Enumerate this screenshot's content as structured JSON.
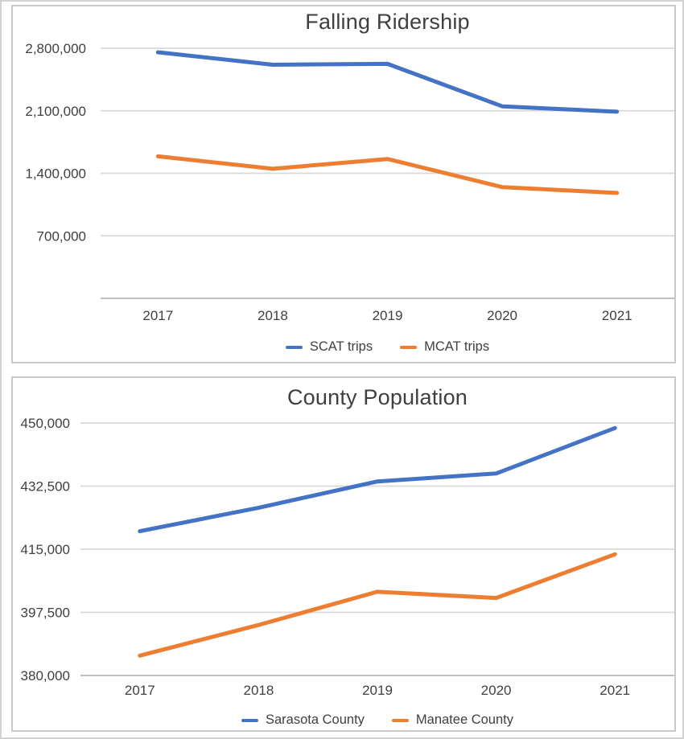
{
  "colors": {
    "series_blue": "#4472C4",
    "series_orange": "#ED7D31",
    "gridline": "#D9D9D9",
    "axis_line": "#BFBFBF",
    "label_text": "#404040",
    "title_text": "#3F3F3F",
    "panel_border": "#C9C9C9"
  },
  "chart_data": [
    {
      "type": "line",
      "title": "Falling Ridership",
      "xlabel": "",
      "ylabel": "",
      "grid": true,
      "legend_position": "bottom",
      "categories": [
        "2017",
        "2018",
        "2019",
        "2020",
        "2021"
      ],
      "series": [
        {
          "name": "SCAT trips",
          "color": "#4472C4",
          "values": [
            2755000,
            2615000,
            2625000,
            2150000,
            2090000
          ]
        },
        {
          "name": "MCAT trips",
          "color": "#ED7D31",
          "values": [
            1590000,
            1450000,
            1560000,
            1245000,
            1180000
          ]
        }
      ],
      "ylim": [
        0,
        2800000
      ],
      "yticks": [
        {
          "value": 2800000,
          "label": "2,800,000"
        },
        {
          "value": 2100000,
          "label": "2,100,000"
        },
        {
          "value": 1400000,
          "label": "1,400,000"
        },
        {
          "value": 700000,
          "label": "700,000"
        },
        {
          "value": 0,
          "label": ""
        }
      ]
    },
    {
      "type": "line",
      "title": "County Population",
      "xlabel": "",
      "ylabel": "",
      "grid": true,
      "legend_position": "bottom",
      "categories": [
        "2017",
        "2018",
        "2019",
        "2020",
        "2021"
      ],
      "series": [
        {
          "name": "Sarasota County",
          "color": "#4472C4",
          "values": [
            420000,
            426500,
            433800,
            436000,
            448600
          ]
        },
        {
          "name": "Manatee County",
          "color": "#ED7D31",
          "values": [
            385500,
            394000,
            403200,
            401500,
            413600
          ]
        }
      ],
      "ylim": [
        380000,
        450000
      ],
      "yticks": [
        {
          "value": 450000,
          "label": "450,000"
        },
        {
          "value": 432500,
          "label": "432,500"
        },
        {
          "value": 415000,
          "label": "415,000"
        },
        {
          "value": 397500,
          "label": "397,500"
        },
        {
          "value": 380000,
          "label": "380,000"
        }
      ]
    }
  ]
}
